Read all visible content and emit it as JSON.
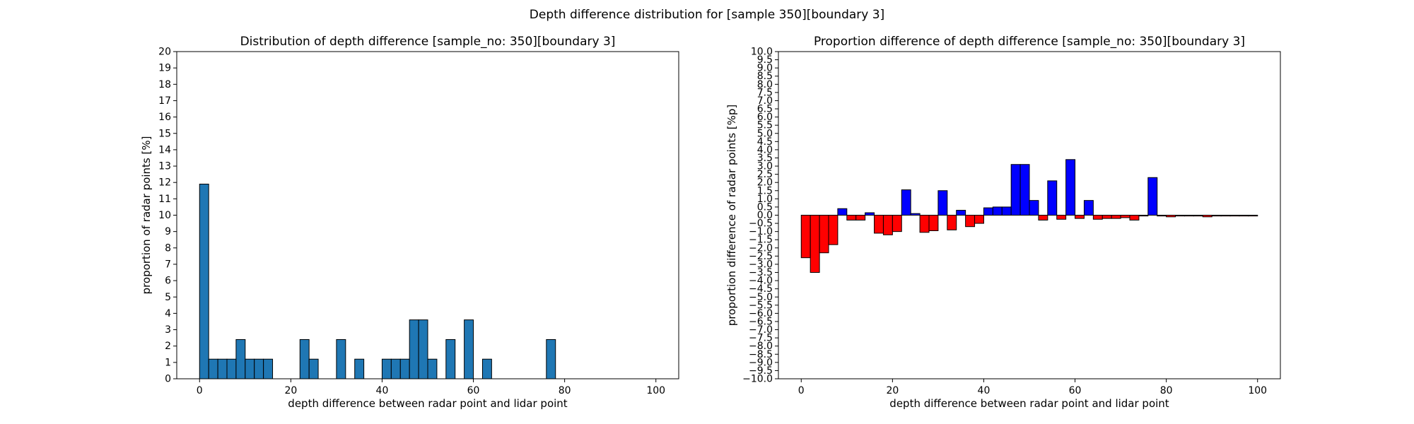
{
  "suptitle": "Depth difference distribution for [sample 350][boundary 3]",
  "colors": {
    "hist_fill": "#1f77b4",
    "positive": "#0000ff",
    "negative": "#ff0000",
    "edge": "#000000"
  },
  "chart_data": [
    {
      "type": "bar",
      "title": "Distribution of depth difference [sample_no: 350][boundary 3]",
      "xlabel": "depth difference between radar point and lidar point",
      "ylabel": "proportion of radar points [%]",
      "xlim": [
        -5,
        105
      ],
      "ylim": [
        0,
        20
      ],
      "xticks": [
        0,
        20,
        40,
        60,
        80,
        100
      ],
      "yticks": [
        0,
        1,
        2,
        3,
        4,
        5,
        6,
        7,
        8,
        9,
        10,
        11,
        12,
        13,
        14,
        15,
        16,
        17,
        18,
        19,
        20
      ],
      "bin_width": 2,
      "bin_starts": [
        0,
        2,
        4,
        6,
        8,
        10,
        12,
        14,
        16,
        18,
        20,
        22,
        24,
        26,
        28,
        30,
        32,
        34,
        36,
        38,
        40,
        42,
        44,
        46,
        48,
        50,
        52,
        54,
        56,
        58,
        60,
        62,
        64,
        66,
        68,
        70,
        72,
        74,
        76,
        78,
        80,
        82,
        84,
        86,
        88,
        90,
        92,
        94,
        96,
        98
      ],
      "values": [
        11.9,
        1.2,
        1.2,
        1.2,
        2.4,
        1.2,
        1.2,
        1.2,
        0,
        0,
        0,
        2.4,
        1.2,
        0,
        0,
        2.4,
        0,
        1.2,
        0,
        0,
        1.2,
        1.2,
        1.2,
        3.6,
        3.6,
        1.2,
        0,
        2.4,
        0,
        3.6,
        0,
        1.2,
        0,
        0,
        0,
        0,
        0,
        0,
        2.4,
        0,
        0,
        0,
        0,
        0,
        0,
        0,
        0,
        0,
        0,
        0
      ]
    },
    {
      "type": "bar",
      "title": "Proportion difference of depth difference [sample_no: 350][boundary 3]",
      "xlabel": "depth difference between radar point and lidar point",
      "ylabel": "proportion difference of radar points [%p]",
      "xlim": [
        -5,
        105
      ],
      "ylim": [
        -10,
        10
      ],
      "xticks": [
        0,
        20,
        40,
        60,
        80,
        100
      ],
      "yticks": [
        "10.0",
        "9.5",
        "9.0",
        "8.5",
        "8.0",
        "7.5",
        "7.0",
        "6.5",
        "6.0",
        "5.5",
        "5.0",
        "4.5",
        "4.0",
        "3.5",
        "3.0",
        "2.5",
        "2.0",
        "1.5",
        "1.0",
        "0.5",
        "0.0",
        "−0.5",
        "−1.0",
        "−1.5",
        "−2.0",
        "−2.5",
        "−3.0",
        "−3.5",
        "−4.0",
        "−4.5",
        "−5.0",
        "−5.5",
        "−6.0",
        "−6.5",
        "−7.0",
        "−7.5",
        "−8.0",
        "−8.5",
        "−9.0",
        "−9.5",
        "−10.0"
      ],
      "bin_width": 2,
      "bin_starts": [
        0,
        2,
        4,
        6,
        8,
        10,
        12,
        14,
        16,
        18,
        20,
        22,
        24,
        26,
        28,
        30,
        32,
        34,
        36,
        38,
        40,
        42,
        44,
        46,
        48,
        50,
        52,
        54,
        56,
        58,
        60,
        62,
        64,
        66,
        68,
        70,
        72,
        74,
        76,
        78,
        80,
        82,
        84,
        86,
        88,
        90,
        92,
        94,
        96,
        98
      ],
      "values": [
        -2.6,
        -3.5,
        -2.3,
        -1.8,
        0.4,
        -0.3,
        -0.3,
        0.15,
        -1.1,
        -1.2,
        -1.0,
        1.55,
        0.1,
        -1.05,
        -0.95,
        1.5,
        -0.9,
        0.3,
        -0.7,
        -0.5,
        0.45,
        0.5,
        0.5,
        3.1,
        3.1,
        0.9,
        -0.3,
        2.1,
        -0.25,
        3.4,
        -0.2,
        0.9,
        -0.25,
        -0.2,
        -0.2,
        -0.15,
        -0.3,
        -0.05,
        2.3,
        -0.05,
        -0.1,
        -0.05,
        -0.05,
        -0.05,
        -0.1,
        -0.05,
        -0.05,
        -0.05,
        -0.05,
        -0.05
      ]
    }
  ]
}
